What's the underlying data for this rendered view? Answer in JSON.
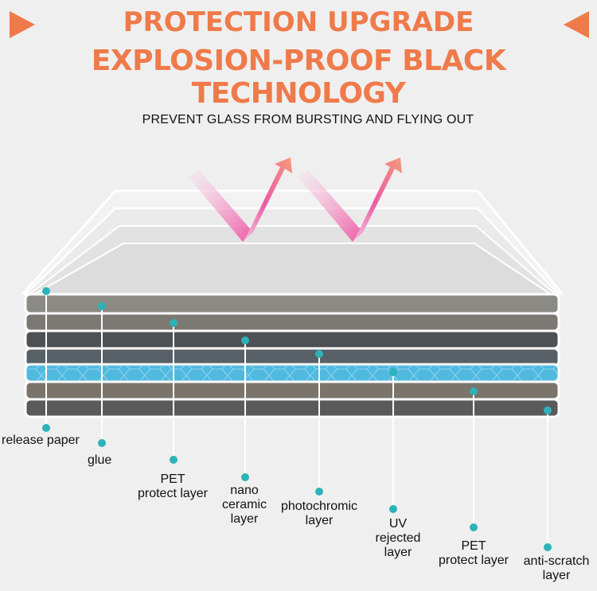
{
  "header": {
    "title": "PROTECTION UPGRADE",
    "subtitle": "EXPLOSION-PROOF BLACK TECHNOLOGY",
    "accent_color": "#ef7a4a"
  },
  "caption": "PREVENT GLASS FROM BURSTING AND FLYING OUT",
  "layers": [
    {
      "label": "release paper"
    },
    {
      "label": "glue"
    },
    {
      "label": "PET\nprotect layer"
    },
    {
      "label": "nano\nceramic\nlayer"
    },
    {
      "label": "photochromic\nlayer"
    },
    {
      "label": "UV\nrejected\nlayer"
    },
    {
      "label": "PET\nprotect layer"
    },
    {
      "label": "anti-scratch\nlayer"
    }
  ],
  "marker_color": "#2bb3b8"
}
